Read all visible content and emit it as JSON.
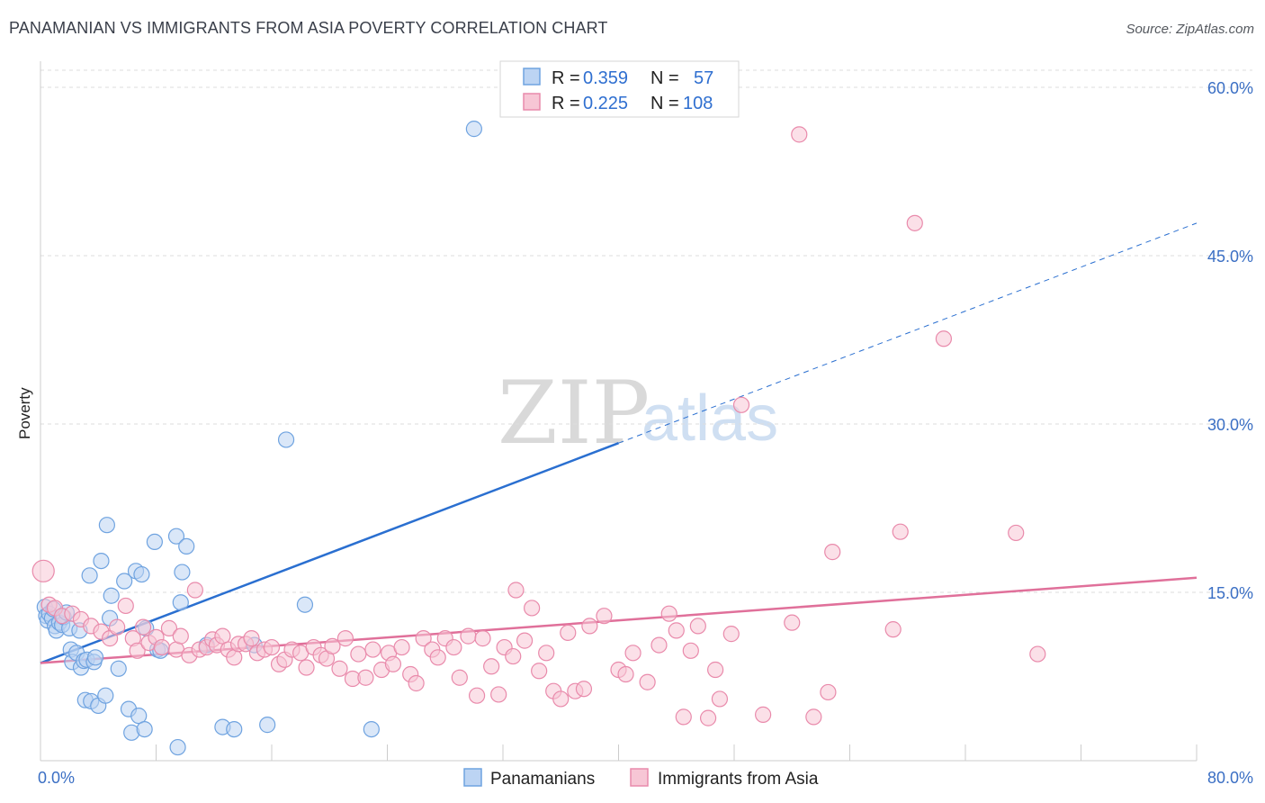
{
  "title": "PANAMANIAN VS IMMIGRANTS FROM ASIA POVERTY CORRELATION CHART",
  "source": "Source: ZipAtlas.com",
  "watermark": {
    "zip": "ZIP",
    "atlas": "atlas"
  },
  "colors": {
    "blue": "#6fa3e0",
    "blue_fill": "#bcd4f3",
    "blue_line": "#2a6fd0",
    "pink": "#e98aab",
    "pink_fill": "#f7c6d5",
    "pink_line": "#e0709a",
    "axis_text": "#3b6fc4",
    "grid": "#dddddd"
  },
  "legend": {
    "rows": [
      {
        "r_label": "R =",
        "r_value": "0.359",
        "n_label": "N =",
        "n_value": "57",
        "series": "Panamanians"
      },
      {
        "r_label": "R =",
        "r_value": "0.225",
        "n_label": "N =",
        "n_value": "108",
        "series": "Immigrants from Asia"
      }
    ]
  },
  "chart_data": {
    "type": "scatter",
    "title": "PANAMANIAN VS IMMIGRANTS FROM ASIA POVERTY CORRELATION CHART",
    "xlabel": "",
    "ylabel": "Poverty",
    "xlim": [
      0,
      80
    ],
    "ylim": [
      0,
      60
    ],
    "x_tick_labels": [
      "0.0%",
      "80.0%"
    ],
    "y_ticks": [
      15,
      30,
      45,
      60
    ],
    "y_tick_labels": [
      "15.0%",
      "30.0%",
      "45.0%",
      "60.0%"
    ],
    "grid": true,
    "legend_position": "top-center",
    "series": [
      {
        "name": "Panamanians",
        "color": "#6fa3e0",
        "trend": {
          "x0": 0,
          "y0": 8.7,
          "x1": 40,
          "y1": 28.3,
          "dashed_to_x": 80,
          "dashed_to_y": 47.9
        },
        "points": [
          [
            0.3,
            13.7
          ],
          [
            0.4,
            12.9
          ],
          [
            0.5,
            12.5
          ],
          [
            0.6,
            13.1
          ],
          [
            0.8,
            12.7
          ],
          [
            0.9,
            13.5
          ],
          [
            1.0,
            12.0
          ],
          [
            1.1,
            11.6
          ],
          [
            1.3,
            12.3
          ],
          [
            1.5,
            12.1
          ],
          [
            1.6,
            12.8
          ],
          [
            1.8,
            13.2
          ],
          [
            2.0,
            11.8
          ],
          [
            2.1,
            9.9
          ],
          [
            2.2,
            8.8
          ],
          [
            2.5,
            9.6
          ],
          [
            2.7,
            11.6
          ],
          [
            2.8,
            8.3
          ],
          [
            3.0,
            8.9
          ],
          [
            3.1,
            5.4
          ],
          [
            3.2,
            9.0
          ],
          [
            3.4,
            16.5
          ],
          [
            3.5,
            5.3
          ],
          [
            3.7,
            8.8
          ],
          [
            3.8,
            9.2
          ],
          [
            4.0,
            4.9
          ],
          [
            4.2,
            17.8
          ],
          [
            4.5,
            5.8
          ],
          [
            4.6,
            21.0
          ],
          [
            4.8,
            12.7
          ],
          [
            4.9,
            14.7
          ],
          [
            5.4,
            8.2
          ],
          [
            5.8,
            16.0
          ],
          [
            6.1,
            4.6
          ],
          [
            6.3,
            2.5
          ],
          [
            6.6,
            16.9
          ],
          [
            6.8,
            4.0
          ],
          [
            7.0,
            16.6
          ],
          [
            7.2,
            2.8
          ],
          [
            7.3,
            11.8
          ],
          [
            7.9,
            19.5
          ],
          [
            8.1,
            9.9
          ],
          [
            8.3,
            9.8
          ],
          [
            9.4,
            20.0
          ],
          [
            9.5,
            1.2
          ],
          [
            9.7,
            14.1
          ],
          [
            9.8,
            16.8
          ],
          [
            10.1,
            19.1
          ],
          [
            11.5,
            10.3
          ],
          [
            12.6,
            3.0
          ],
          [
            13.4,
            2.8
          ],
          [
            14.8,
            10.3
          ],
          [
            15.7,
            3.2
          ],
          [
            17.0,
            28.6
          ],
          [
            18.3,
            13.9
          ],
          [
            22.9,
            2.8
          ],
          [
            30.0,
            56.3
          ]
        ]
      },
      {
        "name": "Immigrants from Asia",
        "color": "#e98aab",
        "trend": {
          "x0": 0,
          "y0": 8.7,
          "x1": 80,
          "y1": 16.3
        },
        "points": [
          [
            0.2,
            16.9
          ],
          [
            0.6,
            13.9
          ],
          [
            1.0,
            13.6
          ],
          [
            1.5,
            12.9
          ],
          [
            2.2,
            13.1
          ],
          [
            2.8,
            12.6
          ],
          [
            3.5,
            12.0
          ],
          [
            4.2,
            11.5
          ],
          [
            4.8,
            10.9
          ],
          [
            5.3,
            11.9
          ],
          [
            5.9,
            13.8
          ],
          [
            6.4,
            10.9
          ],
          [
            6.7,
            9.8
          ],
          [
            7.1,
            11.9
          ],
          [
            7.5,
            10.5
          ],
          [
            8.0,
            11.0
          ],
          [
            8.4,
            10.1
          ],
          [
            8.9,
            11.8
          ],
          [
            9.4,
            9.9
          ],
          [
            9.7,
            11.1
          ],
          [
            10.3,
            9.4
          ],
          [
            10.7,
            15.2
          ],
          [
            11.0,
            9.9
          ],
          [
            11.5,
            10.1
          ],
          [
            11.9,
            10.8
          ],
          [
            12.2,
            10.3
          ],
          [
            12.6,
            11.1
          ],
          [
            13.0,
            9.9
          ],
          [
            13.4,
            9.2
          ],
          [
            13.7,
            10.4
          ],
          [
            14.2,
            10.4
          ],
          [
            14.6,
            10.9
          ],
          [
            15.0,
            9.6
          ],
          [
            15.5,
            9.9
          ],
          [
            16.0,
            10.1
          ],
          [
            16.5,
            8.6
          ],
          [
            16.9,
            9.0
          ],
          [
            17.4,
            9.9
          ],
          [
            18.0,
            9.6
          ],
          [
            18.4,
            8.3
          ],
          [
            18.9,
            10.1
          ],
          [
            19.4,
            9.4
          ],
          [
            19.8,
            9.1
          ],
          [
            20.2,
            10.2
          ],
          [
            20.7,
            8.2
          ],
          [
            21.1,
            10.9
          ],
          [
            21.6,
            7.3
          ],
          [
            22.0,
            9.5
          ],
          [
            22.5,
            7.4
          ],
          [
            23.0,
            9.9
          ],
          [
            23.6,
            8.1
          ],
          [
            24.1,
            9.6
          ],
          [
            24.4,
            8.6
          ],
          [
            25.0,
            10.1
          ],
          [
            25.6,
            7.7
          ],
          [
            26.0,
            6.9
          ],
          [
            26.5,
            10.9
          ],
          [
            27.1,
            9.9
          ],
          [
            27.5,
            9.2
          ],
          [
            28.0,
            10.9
          ],
          [
            28.6,
            10.1
          ],
          [
            29.0,
            7.4
          ],
          [
            29.6,
            11.1
          ],
          [
            30.2,
            5.8
          ],
          [
            30.6,
            10.9
          ],
          [
            31.2,
            8.4
          ],
          [
            31.7,
            5.9
          ],
          [
            32.1,
            10.1
          ],
          [
            32.7,
            9.3
          ],
          [
            32.9,
            15.2
          ],
          [
            33.5,
            10.7
          ],
          [
            34.0,
            13.6
          ],
          [
            34.5,
            8.0
          ],
          [
            35.0,
            9.6
          ],
          [
            35.5,
            6.2
          ],
          [
            36.0,
            5.5
          ],
          [
            36.5,
            11.4
          ],
          [
            37.0,
            6.2
          ],
          [
            37.6,
            6.4
          ],
          [
            38.0,
            12.0
          ],
          [
            39.0,
            12.9
          ],
          [
            40.0,
            8.1
          ],
          [
            40.5,
            7.7
          ],
          [
            41.0,
            9.6
          ],
          [
            42.0,
            7.0
          ],
          [
            42.8,
            10.3
          ],
          [
            43.5,
            13.1
          ],
          [
            44.0,
            11.6
          ],
          [
            44.5,
            3.9
          ],
          [
            45.0,
            9.8
          ],
          [
            45.5,
            12.0
          ],
          [
            46.2,
            3.8
          ],
          [
            46.7,
            8.1
          ],
          [
            47.0,
            5.5
          ],
          [
            47.8,
            11.3
          ],
          [
            48.5,
            31.7
          ],
          [
            50.0,
            4.1
          ],
          [
            52.0,
            12.3
          ],
          [
            52.5,
            55.8
          ],
          [
            53.5,
            3.9
          ],
          [
            54.5,
            6.1
          ],
          [
            54.8,
            18.6
          ],
          [
            59.0,
            11.7
          ],
          [
            59.5,
            20.4
          ],
          [
            60.5,
            47.9
          ],
          [
            62.5,
            37.6
          ],
          [
            67.5,
            20.3
          ],
          [
            69.0,
            9.5
          ]
        ]
      }
    ]
  },
  "bottom_legend": {
    "items": [
      {
        "label": "Panamanians"
      },
      {
        "label": "Immigrants from Asia"
      }
    ]
  }
}
